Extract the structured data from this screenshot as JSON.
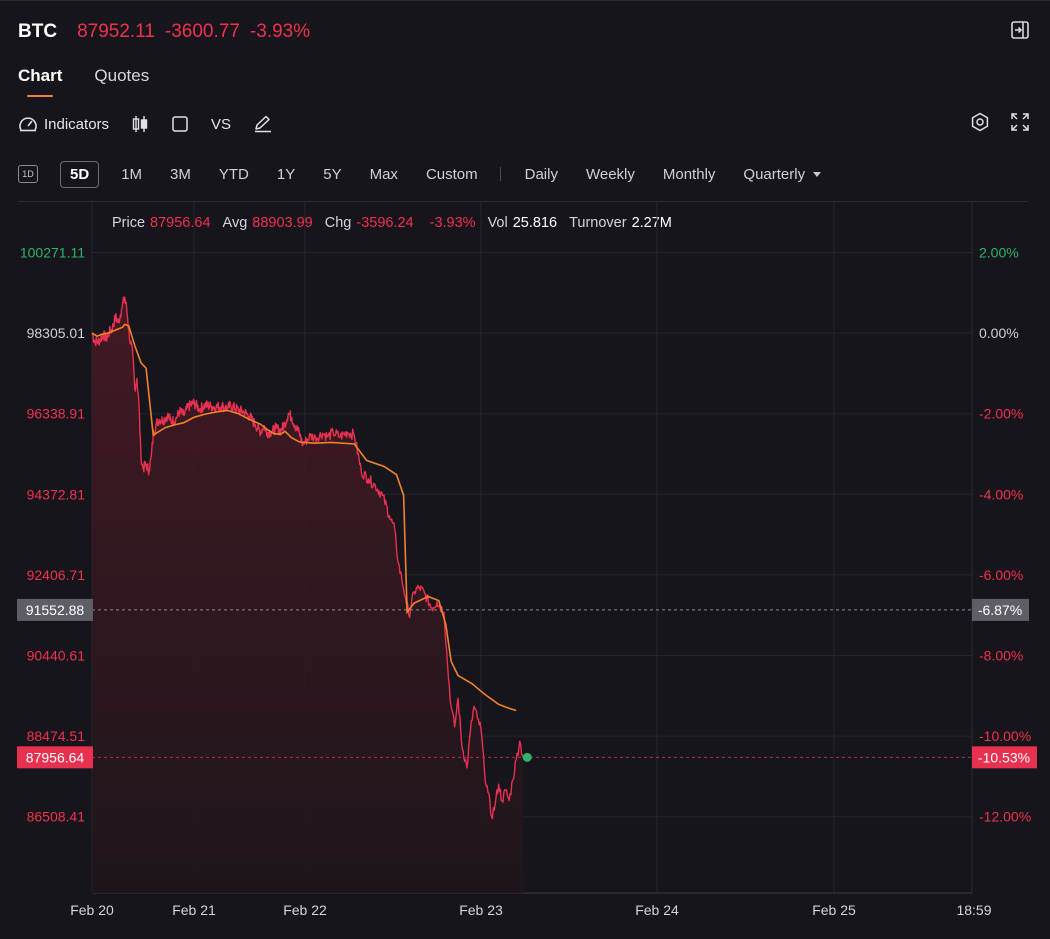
{
  "header": {
    "symbol": "BTC",
    "last_price": "87952.11",
    "change": "-3600.77",
    "change_pct": "-3.93%"
  },
  "tabs": [
    {
      "label": "Chart",
      "active": true
    },
    {
      "label": "Quotes",
      "active": false
    }
  ],
  "toolbar": {
    "indicators_label": "Indicators",
    "vs_label": "VS",
    "icons": [
      "indicators-icon",
      "candlestick-icon",
      "square-icon",
      "pen-icon",
      "settings-icon",
      "fullscreen-icon"
    ]
  },
  "ranges": {
    "day_box": "1D",
    "items": [
      "5D",
      "1M",
      "3M",
      "YTD",
      "1Y",
      "5Y",
      "Max",
      "Custom"
    ],
    "active": "5D",
    "intervals": [
      "Daily",
      "Weekly",
      "Monthly",
      "Quarterly"
    ]
  },
  "info": {
    "price_label": "Price",
    "price": "87956.64",
    "avg_label": "Avg",
    "avg": "88903.99",
    "chg_label": "Chg",
    "chg": "-3596.24",
    "chg_pct": "-3.93%",
    "vol_label": "Vol",
    "vol": "25.816",
    "turnover_label": "Turnover",
    "turnover": "2.27M"
  },
  "chart_data": {
    "type": "line",
    "prev_close": 98305.01,
    "y_ticks_left": [
      "100271.11",
      "98305.01",
      "96338.91",
      "94372.81",
      "92406.71",
      "90440.61",
      "88474.51",
      "86508.41"
    ],
    "y_ticks_right": [
      "2.00%",
      "0.00%",
      "-2.00%",
      "-4.00%",
      "-6.00%",
      "-8.00%",
      "-10.00%",
      "-12.00%"
    ],
    "ylim": [
      85500,
      101500
    ],
    "x_ticks": [
      "Feb 20",
      "Feb 21",
      "Feb 22",
      "Feb 23",
      "Feb 24",
      "Feb 25",
      "18:59"
    ],
    "crosshair": {
      "price": "91552.88",
      "pct": "-6.87%"
    },
    "current": {
      "price": "87956.64",
      "pct": "-10.53%"
    },
    "colors": {
      "price": "#e8304f",
      "avg": "#f0822c",
      "up": "#2fb46a",
      "down": "#f0324e",
      "grid": "#25252d"
    },
    "series": [
      {
        "name": "Price",
        "values": [
          [
            0.0,
            98305
          ],
          [
            0.02,
            98150
          ],
          [
            0.05,
            98080
          ],
          [
            0.08,
            98150
          ],
          [
            0.11,
            98270
          ],
          [
            0.14,
            98170
          ],
          [
            0.17,
            98330
          ],
          [
            0.2,
            98420
          ],
          [
            0.23,
            98700
          ],
          [
            0.26,
            98560
          ],
          [
            0.29,
            98900
          ],
          [
            0.32,
            99180
          ],
          [
            0.34,
            98900
          ],
          [
            0.37,
            98150
          ],
          [
            0.4,
            97800
          ],
          [
            0.42,
            96950
          ],
          [
            0.44,
            97200
          ],
          [
            0.46,
            96600
          ],
          [
            0.48,
            95300
          ],
          [
            0.5,
            95000
          ],
          [
            0.53,
            95100
          ],
          [
            0.56,
            94950
          ],
          [
            0.58,
            95280
          ],
          [
            0.6,
            95800
          ],
          [
            0.63,
            96100
          ],
          [
            0.66,
            96200
          ],
          [
            0.7,
            96180
          ],
          [
            0.74,
            96300
          ],
          [
            0.78,
            96150
          ],
          [
            0.82,
            96200
          ],
          [
            0.86,
            96400
          ],
          [
            0.9,
            96300
          ],
          [
            0.94,
            96500
          ],
          [
            1.0,
            96600
          ],
          [
            1.05,
            96450
          ],
          [
            1.1,
            96550
          ],
          [
            1.15,
            96520
          ],
          [
            1.2,
            96500
          ],
          [
            1.25,
            96530
          ],
          [
            1.3,
            96470
          ],
          [
            1.33,
            96540
          ],
          [
            1.4,
            96430
          ],
          [
            1.45,
            96380
          ],
          [
            1.5,
            96280
          ],
          [
            1.55,
            96080
          ],
          [
            1.6,
            95900
          ],
          [
            1.63,
            96050
          ],
          [
            1.66,
            95880
          ],
          [
            1.7,
            95900
          ],
          [
            1.74,
            95990
          ],
          [
            1.78,
            95920
          ],
          [
            1.82,
            96100
          ],
          [
            1.85,
            96350
          ],
          [
            1.88,
            96250
          ],
          [
            1.91,
            96050
          ],
          [
            1.95,
            95860
          ],
          [
            1.98,
            95580
          ],
          [
            2.0,
            95650
          ],
          [
            2.03,
            95800
          ],
          [
            2.06,
            95750
          ],
          [
            2.1,
            95860
          ],
          [
            2.13,
            95780
          ],
          [
            2.16,
            95880
          ],
          [
            2.2,
            95780
          ],
          [
            2.24,
            95890
          ],
          [
            2.28,
            95820
          ],
          [
            2.32,
            94930
          ],
          [
            2.36,
            94750
          ],
          [
            2.4,
            94580
          ],
          [
            2.44,
            94350
          ],
          [
            2.48,
            93850
          ],
          [
            2.51,
            93500
          ],
          [
            2.53,
            92700
          ],
          [
            2.55,
            92300
          ],
          [
            2.57,
            91880
          ],
          [
            2.59,
            91420
          ],
          [
            2.62,
            92000
          ],
          [
            2.65,
            92100
          ],
          [
            2.68,
            91950
          ],
          [
            2.72,
            91600
          ],
          [
            2.75,
            91750
          ],
          [
            2.79,
            91500
          ],
          [
            2.81,
            90200
          ],
          [
            2.83,
            89200
          ],
          [
            2.85,
            88700
          ],
          [
            2.87,
            89400
          ],
          [
            2.89,
            88300
          ],
          [
            2.92,
            87700
          ],
          [
            2.94,
            88600
          ],
          [
            2.96,
            89200
          ],
          [
            2.98,
            88900
          ],
          [
            3.0,
            88650
          ],
          [
            3.02,
            87600
          ],
          [
            3.04,
            87100
          ],
          [
            3.06,
            86500
          ],
          [
            3.08,
            86800
          ],
          [
            3.1,
            87300
          ],
          [
            3.12,
            86900
          ],
          [
            3.14,
            87150
          ],
          [
            3.16,
            86900
          ],
          [
            3.18,
            87400
          ],
          [
            3.2,
            87900
          ],
          [
            3.22,
            88350
          ],
          [
            3.24,
            87950
          ]
        ]
      },
      {
        "name": "Avg",
        "values": [
          [
            0.0,
            98305
          ],
          [
            0.05,
            98230
          ],
          [
            0.1,
            98280
          ],
          [
            0.15,
            98300
          ],
          [
            0.2,
            98350
          ],
          [
            0.25,
            98400
          ],
          [
            0.3,
            98450
          ],
          [
            0.32,
            98520
          ],
          [
            0.36,
            98480
          ],
          [
            0.42,
            98000
          ],
          [
            0.48,
            97580
          ],
          [
            0.53,
            97450
          ],
          [
            0.6,
            95820
          ],
          [
            0.66,
            95910
          ],
          [
            0.72,
            96000
          ],
          [
            0.8,
            96060
          ],
          [
            0.9,
            96120
          ],
          [
            1.0,
            96250
          ],
          [
            1.1,
            96330
          ],
          [
            1.2,
            96380
          ],
          [
            1.3,
            96420
          ],
          [
            1.4,
            96340
          ],
          [
            1.5,
            96200
          ],
          [
            1.6,
            96080
          ],
          [
            1.66,
            95950
          ],
          [
            1.72,
            95850
          ],
          [
            1.78,
            95840
          ],
          [
            1.82,
            95910
          ],
          [
            1.88,
            95750
          ],
          [
            1.95,
            95650
          ],
          [
            2.05,
            95620
          ],
          [
            2.15,
            95640
          ],
          [
            2.28,
            95600
          ],
          [
            2.35,
            95200
          ],
          [
            2.45,
            95050
          ],
          [
            2.52,
            94850
          ],
          [
            2.56,
            94350
          ],
          [
            2.58,
            91500
          ],
          [
            2.62,
            91720
          ],
          [
            2.7,
            91880
          ],
          [
            2.76,
            91780
          ],
          [
            2.8,
            91200
          ],
          [
            2.83,
            90300
          ],
          [
            2.87,
            89950
          ],
          [
            2.95,
            89750
          ],
          [
            3.02,
            89500
          ],
          [
            3.1,
            89250
          ],
          [
            3.16,
            89150
          ],
          [
            3.2,
            89100
          ]
        ]
      }
    ]
  }
}
